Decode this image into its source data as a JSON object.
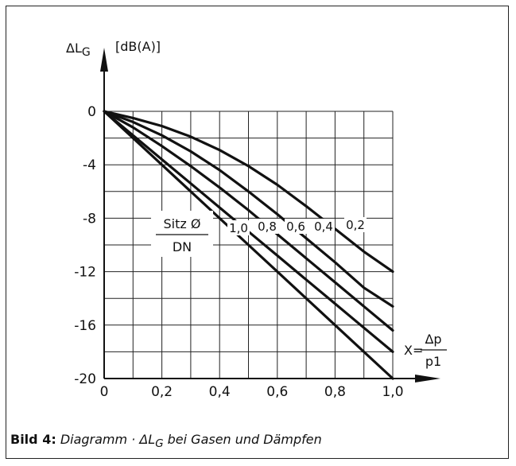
{
  "chart_data": {
    "type": "line",
    "y_axis_symbol": "ΔL",
    "y_axis_symbol_sub": "G",
    "y_axis_unit": "[dB(A)]",
    "x_axis_prefix": "X=",
    "x_axis_num": "Δp",
    "x_axis_den": "p1",
    "xlim": [
      0,
      1.0
    ],
    "ylim": [
      -20,
      0
    ],
    "x_ticks": [
      0,
      0.2,
      0.4,
      0.6,
      0.8,
      1.0
    ],
    "x_tick_labels": [
      "0",
      "0,2",
      "0,4",
      "0,6",
      "0,8",
      "1,0"
    ],
    "y_ticks": [
      0,
      -4,
      -8,
      -12,
      -16,
      -20
    ],
    "y_tick_labels": [
      "0",
      "-4",
      "-8",
      "-12",
      "-16",
      "-20"
    ],
    "grid": true,
    "param_label_num": "Sitz Ø",
    "param_label_den": "DN",
    "series": [
      {
        "name": "1,0",
        "x": [
          0,
          0.1,
          0.2,
          0.3,
          0.4,
          0.5,
          0.6,
          0.7,
          0.8,
          0.9,
          1.0
        ],
        "y": [
          0,
          -2,
          -4,
          -6,
          -8,
          -10,
          -12,
          -14,
          -16,
          -18,
          -20
        ]
      },
      {
        "name": "0,8",
        "x": [
          0,
          0.1,
          0.2,
          0.3,
          0.4,
          0.5,
          0.6,
          0.7,
          0.8,
          0.9,
          1.0
        ],
        "y": [
          0,
          -1.8,
          -3.6,
          -5.4,
          -7.2,
          -9.0,
          -10.8,
          -12.6,
          -14.4,
          -16.2,
          -18
        ]
      },
      {
        "name": "0,6",
        "x": [
          0,
          0.1,
          0.2,
          0.3,
          0.4,
          0.5,
          0.6,
          0.7,
          0.8,
          0.9,
          1.0
        ],
        "y": [
          0,
          -1.2,
          -2.6,
          -4.1,
          -5.7,
          -7.4,
          -9.2,
          -11.0,
          -12.8,
          -14.6,
          -16.4
        ]
      },
      {
        "name": "0,4",
        "x": [
          0,
          0.1,
          0.2,
          0.3,
          0.4,
          0.5,
          0.6,
          0.7,
          0.8,
          0.9,
          1.0
        ],
        "y": [
          0,
          -0.8,
          -1.8,
          -3.0,
          -4.4,
          -6.0,
          -7.7,
          -9.5,
          -11.3,
          -13.2,
          -14.6
        ]
      },
      {
        "name": "0,2",
        "x": [
          0,
          0.1,
          0.2,
          0.3,
          0.4,
          0.5,
          0.6,
          0.7,
          0.8,
          0.9,
          1.0
        ],
        "y": [
          0,
          -0.5,
          -1.1,
          -1.9,
          -2.9,
          -4.1,
          -5.5,
          -7.1,
          -8.8,
          -10.5,
          -12.0
        ]
      }
    ]
  },
  "caption": {
    "label": "Bild 4:",
    "text_before": "Diagramm · ΔL",
    "text_sub": "G",
    "text_after": " bei Gasen und Dämpfen"
  }
}
